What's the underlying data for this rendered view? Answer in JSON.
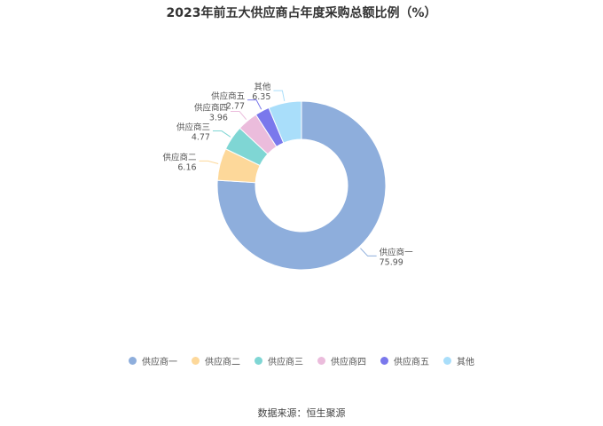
{
  "chart_data": {
    "type": "pie",
    "title": "2023年前五大供应商占年度采购总额比例（%）",
    "donut": true,
    "slices": [
      {
        "name": "供应商一",
        "value": 75.99,
        "label": "75.99",
        "color": "#8eaedc"
      },
      {
        "name": "供应商二",
        "value": 6.16,
        "label": "6.16",
        "color": "#fdd89a"
      },
      {
        "name": "供应商三",
        "value": 4.77,
        "label": "4.77",
        "color": "#7fd6d4"
      },
      {
        "name": "供应商四",
        "value": 3.96,
        "label": "3.96",
        "color": "#ebbcdc"
      },
      {
        "name": "供应商五",
        "value": 2.77,
        "label": "2.77",
        "color": "#7a78ec"
      },
      {
        "name": "其他",
        "value": 6.35,
        "label": "6.35",
        "color": "#a9defa"
      }
    ],
    "legend_position": "bottom"
  },
  "source": "数据来源：恒生聚源"
}
